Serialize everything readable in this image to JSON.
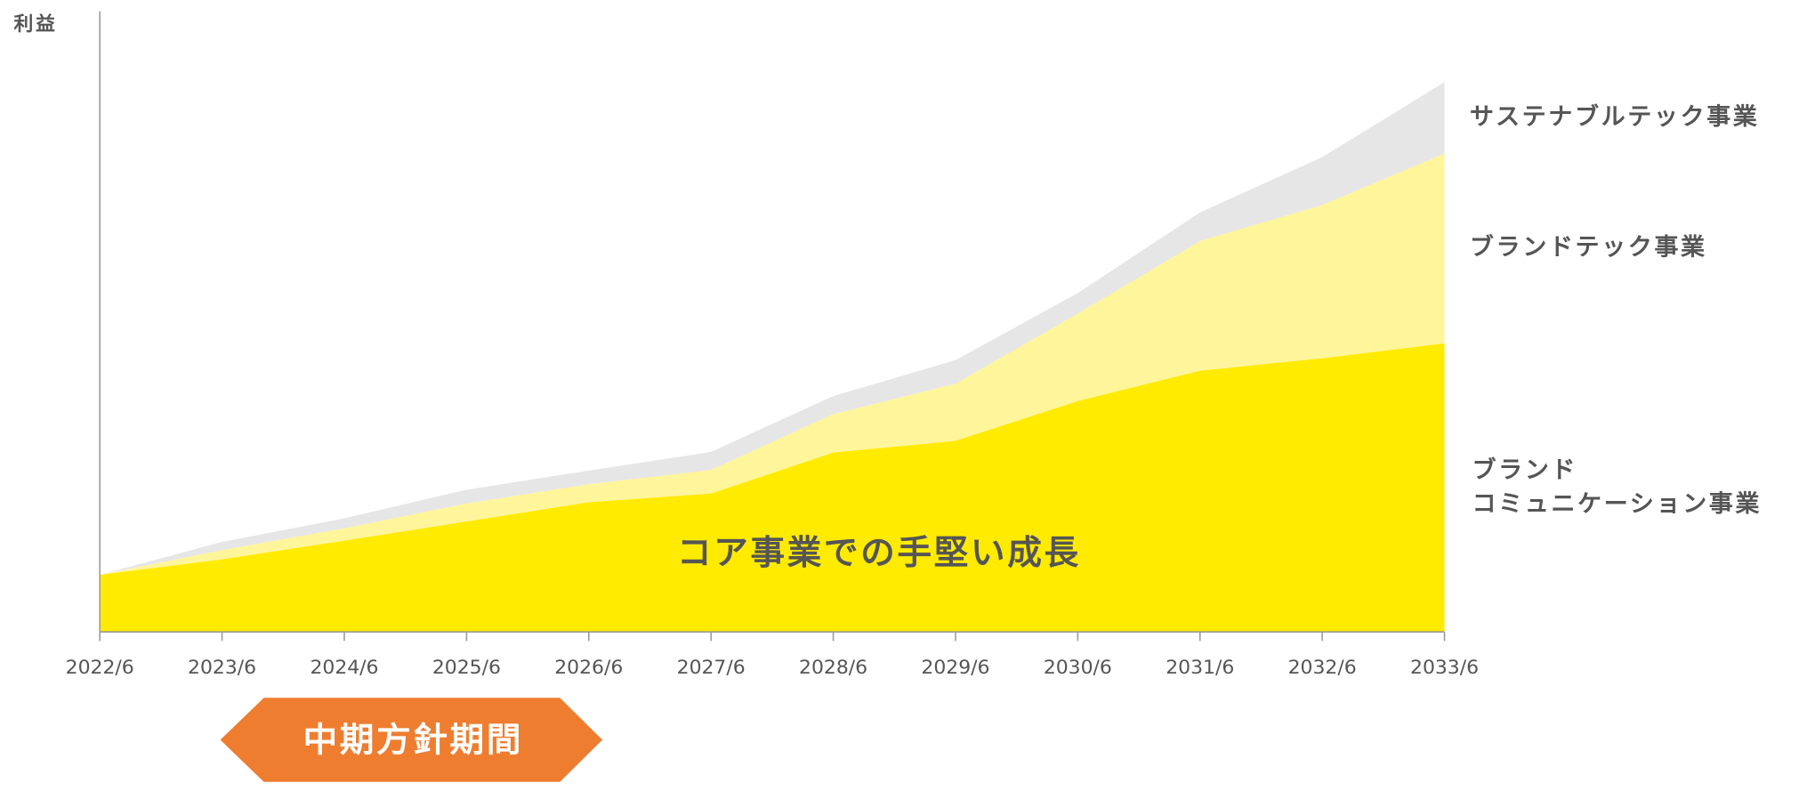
{
  "chart_data": {
    "type": "stacked_area",
    "y_label": "利益",
    "annotation": "コア事業での手堅い成長",
    "period_label": "中期方針期間",
    "categories": [
      "2022/6",
      "2023/6",
      "2024/6",
      "2025/6",
      "2026/6",
      "2027/6",
      "2028/6",
      "2029/6",
      "2030/6",
      "2031/6",
      "2032/6",
      "2033/6"
    ],
    "ylim": [
      0,
      100
    ],
    "series": [
      {
        "name": "ブランド\nコミュニケーション事業",
        "color": "#ffeb00",
        "values": [
          9.2,
          11.7,
          14.7,
          17.8,
          20.9,
          22.3,
          28.9,
          30.8,
          37.2,
          42.1,
          44.1,
          46.5
        ]
      },
      {
        "name": "ブランドテック事業",
        "color": "#fff59a",
        "values": [
          0,
          1.5,
          2.0,
          2.9,
          2.9,
          3.8,
          6.2,
          9.2,
          14.1,
          20.9,
          24.7,
          30.6
        ]
      },
      {
        "name": "サステナブルテック事業",
        "color": "#e6e6e6",
        "values": [
          0,
          1.3,
          1.6,
          2.2,
          2.2,
          2.9,
          2.9,
          3.8,
          3.3,
          4.6,
          7.7,
          11.5
        ]
      }
    ]
  }
}
